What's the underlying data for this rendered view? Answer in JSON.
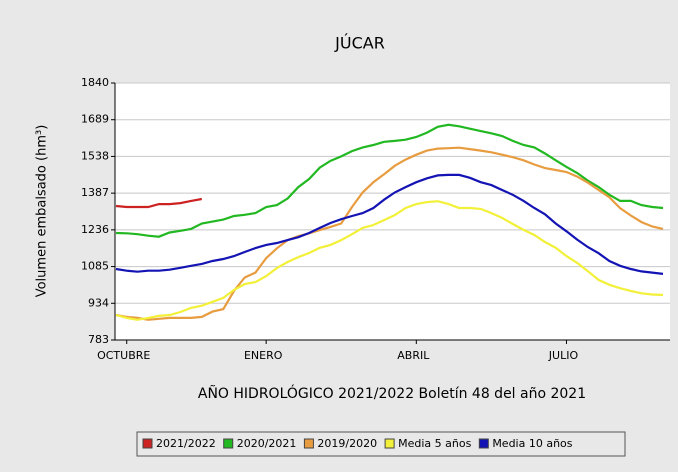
{
  "chart_data": {
    "type": "line",
    "title": "JÚCAR",
    "y_label": "Volumen embalsado (hm³)",
    "x_label": "AÑO HIDROLÓGICO 2021/2022 Boletín 48 del año 2021",
    "categories": [
      null,
      "OCTUBRE",
      null,
      null,
      null,
      null,
      null,
      null,
      null,
      null,
      null,
      null,
      null,
      null,
      "ENERO",
      null,
      null,
      null,
      null,
      null,
      null,
      null,
      null,
      null,
      null,
      null,
      null,
      null,
      "ABRIL",
      null,
      null,
      null,
      null,
      null,
      null,
      null,
      null,
      null,
      null,
      null,
      null,
      null,
      "JULIO",
      null,
      null,
      null,
      null,
      null,
      null,
      null,
      null,
      null
    ],
    "ylim": [
      783,
      1840
    ],
    "yticks": [
      783,
      934,
      1085,
      1236,
      1387,
      1538,
      1689,
      1840
    ],
    "grid": true,
    "series": [
      {
        "name": "2021/2022",
        "color": "#cc2222",
        "values": [
          1334,
          1330,
          1330,
          1330,
          1342,
          1342,
          1346,
          1355,
          1363,
          null,
          null,
          null,
          null,
          null,
          null,
          null,
          null,
          null,
          null,
          null,
          null,
          null,
          null,
          null,
          null,
          null,
          null,
          null,
          null,
          null,
          null,
          null,
          null,
          null,
          null,
          null,
          null,
          null,
          null,
          null,
          null,
          null,
          null,
          null,
          null,
          null,
          null,
          null,
          null,
          null,
          null,
          null
        ]
      },
      {
        "name": "2020/2021",
        "color": "#22b822",
        "values": [
          1223,
          1222,
          1218,
          1212,
          1208,
          1225,
          1232,
          1240,
          1262,
          1270,
          1278,
          1293,
          1298,
          1305,
          1330,
          1338,
          1365,
          1412,
          1445,
          1492,
          1520,
          1538,
          1560,
          1575,
          1585,
          1598,
          1602,
          1607,
          1618,
          1636,
          1660,
          1668,
          1662,
          1652,
          1642,
          1633,
          1622,
          1602,
          1585,
          1575,
          1550,
          1522,
          1495,
          1470,
          1438,
          1412,
          1380,
          1355,
          1355,
          1338,
          1330,
          1326
        ]
      },
      {
        "name": "2019/2020",
        "color": "#e89c40",
        "values": [
          886,
          878,
          874,
          866,
          870,
          874,
          874,
          874,
          878,
          900,
          910,
          985,
          1040,
          1060,
          1120,
          1160,
          1194,
          1210,
          1222,
          1235,
          1248,
          1262,
          1330,
          1390,
          1432,
          1465,
          1500,
          1525,
          1545,
          1562,
          1570,
          1572,
          1574,
          1568,
          1562,
          1555,
          1545,
          1535,
          1522,
          1505,
          1490,
          1482,
          1474,
          1455,
          1430,
          1400,
          1370,
          1325,
          1295,
          1268,
          1250,
          1240
        ]
      },
      {
        "name": "Media 5 años",
        "color": "#f2f038",
        "values": [
          886,
          874,
          866,
          874,
          882,
          886,
          898,
          915,
          924,
          940,
          956,
          989,
          1013,
          1021,
          1046,
          1079,
          1104,
          1124,
          1141,
          1162,
          1174,
          1194,
          1218,
          1244,
          1256,
          1276,
          1297,
          1326,
          1342,
          1350,
          1354,
          1342,
          1326,
          1326,
          1322,
          1305,
          1285,
          1260,
          1236,
          1215,
          1186,
          1162,
          1128,
          1100,
          1066,
          1030,
          1010,
          996,
          985,
          975,
          970,
          968
        ]
      },
      {
        "name": "Media 10 años",
        "color": "#1414b4",
        "values": [
          1075,
          1068,
          1064,
          1068,
          1068,
          1072,
          1080,
          1088,
          1096,
          1108,
          1116,
          1128,
          1145,
          1161,
          1174,
          1182,
          1194,
          1206,
          1223,
          1244,
          1264,
          1280,
          1293,
          1305,
          1326,
          1360,
          1390,
          1412,
          1432,
          1448,
          1460,
          1462,
          1462,
          1450,
          1432,
          1420,
          1400,
          1380,
          1355,
          1326,
          1300,
          1262,
          1230,
          1196,
          1165,
          1140,
          1108,
          1088,
          1075,
          1065,
          1060,
          1055
        ]
      }
    ]
  }
}
